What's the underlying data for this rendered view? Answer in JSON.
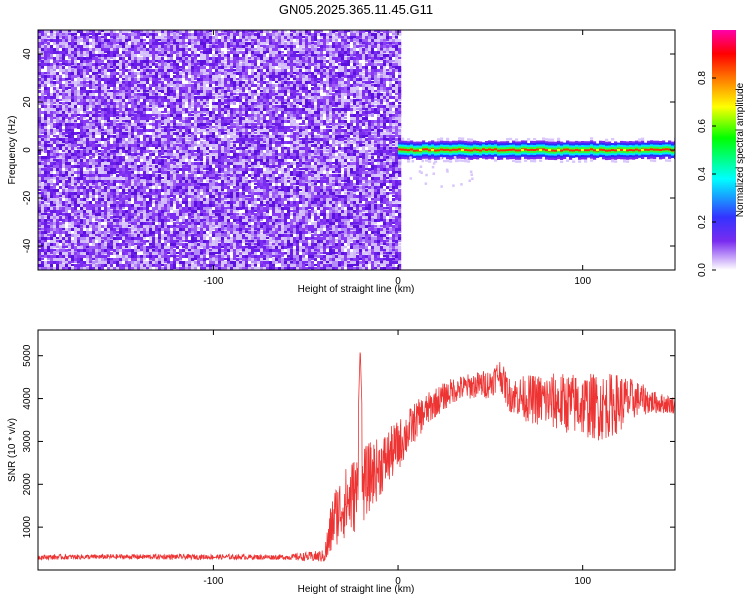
{
  "title": "GN05.2025.365.11.45.G11",
  "colors": {
    "snr_line": "#ee3333",
    "spectrogram_noise": "#7a2cf0",
    "colormap": [
      "#ffffff",
      "#7a2cf0",
      "#4444ff",
      "#00ffff",
      "#00ff00",
      "#ffff00",
      "#ff7700",
      "#ff0000",
      "#ff00aa"
    ]
  },
  "chart_data": [
    {
      "type": "heatmap",
      "name": "spectrogram",
      "xlabel": "Height of straight line (km)",
      "ylabel": "Frequency (Hz)",
      "xlim": [
        -195,
        150
      ],
      "ylim": [
        -50,
        50
      ],
      "xticks": [
        -100,
        0,
        100
      ],
      "yticks": [
        -40,
        -20,
        0,
        20,
        40
      ],
      "regions": [
        {
          "description_x": [
            -195,
            0
          ],
          "frequency": [
            -50,
            50
          ],
          "amplitude": "low, scattered noise"
        },
        {
          "description_x": [
            0,
            150
          ],
          "frequency": [
            -3,
            3
          ],
          "amplitude": "peak ~0.9 centered at 0 Hz"
        }
      ],
      "colorbar": {
        "label": "Normalized spectral amplitude",
        "range": [
          0,
          1
        ],
        "ticks": [
          "0.0",
          "0.2",
          "0.4",
          "0.6",
          "0.8"
        ]
      }
    },
    {
      "type": "line",
      "name": "snr",
      "xlabel": "Height of straight line (km)",
      "ylabel": "SNR (10 * v/v)",
      "xlim": [
        -195,
        150
      ],
      "ylim": [
        0,
        5600
      ],
      "xticks": [
        -100,
        0,
        100
      ],
      "yticks": [
        1000,
        2000,
        3000,
        4000,
        5000
      ],
      "x": [
        -195,
        -150,
        -100,
        -60,
        -40,
        -38,
        -35,
        -30,
        -25,
        -20,
        -15,
        -10,
        0,
        10,
        20,
        30,
        40,
        50,
        55,
        60,
        70,
        80,
        90,
        100,
        110,
        120,
        130,
        140,
        150
      ],
      "y": [
        300,
        310,
        305,
        300,
        320,
        600,
        1200,
        1500,
        1700,
        1900,
        2200,
        2400,
        2900,
        3500,
        3900,
        4200,
        4300,
        4350,
        4600,
        4100,
        4000,
        3950,
        3900,
        3850,
        3800,
        3900,
        4000,
        3900,
        3850
      ],
      "noise_amplitude": [
        60,
        60,
        60,
        60,
        150,
        500,
        700,
        800,
        900,
        900,
        800,
        700,
        600,
        450,
        350,
        300,
        300,
        350,
        350,
        400,
        550,
        650,
        700,
        750,
        800,
        700,
        400,
        250,
        200
      ]
    }
  ]
}
